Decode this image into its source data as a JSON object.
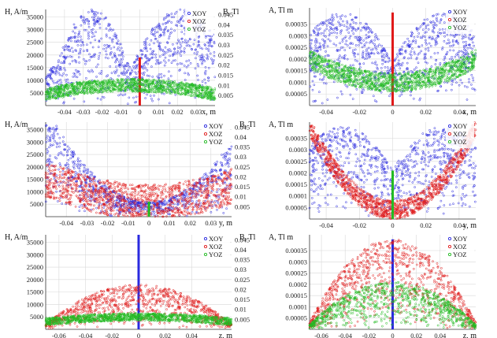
{
  "figure": {
    "legend_labels": [
      "XOY",
      "XOZ",
      "YOZ"
    ],
    "colors": {
      "XOY": "#2a2adf",
      "XOZ": "#e01a1a",
      "YOZ": "#22bb22",
      "grid": "#d8d8d8",
      "axis": "#333333"
    }
  },
  "chart_data": [
    {
      "type": "scatter",
      "panel": "row1-left",
      "ylabel": "H, A/m",
      "y2label": "B, Tl",
      "xlabel": "x, m",
      "x_ticks": [
        "-0.04",
        "-0.03",
        "-0.02",
        "-0.01",
        "0",
        "0.01",
        "0.02",
        "0.03"
      ],
      "y_ticks": [
        "5000",
        "10000",
        "15000",
        "20000",
        "25000",
        "30000",
        "35000"
      ],
      "y2_ticks": [
        "0.005",
        "0.01",
        "0.015",
        "0.02",
        "0.025",
        "0.03",
        "0.035",
        "0.04",
        "0.045"
      ],
      "xlim": [
        -0.05,
        0.04
      ],
      "ylim": [
        0,
        38000
      ],
      "legend": "top-right",
      "grid": true,
      "series": [
        {
          "name": "XOY",
          "shape": "twin-hump",
          "x_center": -0.005,
          "peak_x": [
            -0.025,
            0.022
          ],
          "peak": 38000,
          "center_value": 3000,
          "spread": "uniform-below"
        },
        {
          "name": "XOZ",
          "shape": "spike",
          "x": 0,
          "values": [
            0,
            19000
          ]
        },
        {
          "name": "YOZ",
          "shape": "band",
          "x_center": -0.005,
          "edge_value": 4500,
          "center_value": 8000,
          "thickness": 2500
        }
      ]
    },
    {
      "type": "scatter",
      "panel": "row1-right",
      "ylabel": "A, Tl m",
      "xlabel": "x, m",
      "x_ticks": [
        "-0.04",
        "-0.02",
        "0",
        "0.02",
        "0.04"
      ],
      "y_ticks": [
        "0.00005",
        "0.0001",
        "0.00015",
        "0.0002",
        "0.00025",
        "0.0003",
        "0.00035"
      ],
      "xlim": [
        -0.05,
        0.05
      ],
      "ylim": [
        0,
        0.00042
      ],
      "legend": "top-right",
      "grid": true,
      "series": [
        {
          "name": "XOY",
          "shape": "twin-hump",
          "peak_x": [
            -0.03,
            0.03
          ],
          "peak": 0.0004,
          "center_value": 8e-05,
          "spread": "uniform-below"
        },
        {
          "name": "XOZ",
          "shape": "spike",
          "x": 0,
          "values": [
            0,
            0.0004
          ]
        },
        {
          "name": "YOZ",
          "shape": "valley-band",
          "edge_value": 0.0002,
          "center_value": 0.0001,
          "thickness": 4e-05
        }
      ]
    },
    {
      "type": "scatter",
      "panel": "row2-left",
      "ylabel": "H, A/m",
      "y2label": "B, Tl",
      "xlabel": "y, m",
      "x_ticks": [
        "-0.04",
        "-0.03",
        "-0.02",
        "-0.01",
        "0",
        "0.01",
        "0.02",
        "0.03"
      ],
      "y_ticks": [
        "5000",
        "10000",
        "15000",
        "20000",
        "25000",
        "30000",
        "35000"
      ],
      "y2_ticks": [
        "0.005",
        "0.01",
        "0.015",
        "0.02",
        "0.025",
        "0.03",
        "0.035",
        "0.04",
        "0.045"
      ],
      "xlim": [
        -0.05,
        0.04
      ],
      "ylim": [
        0,
        38000
      ],
      "legend": "top-right",
      "grid": true,
      "series": [
        {
          "name": "XOY",
          "shape": "parabola",
          "edge_value": 37000,
          "center_value": 6000,
          "spread": "uniform-below"
        },
        {
          "name": "XOZ",
          "shape": "valley-band",
          "edge_value": 14000,
          "center_value": 6000,
          "thickness": 7000
        },
        {
          "name": "YOZ",
          "shape": "spike",
          "x": 0,
          "values": [
            0,
            6000
          ]
        }
      ]
    },
    {
      "type": "scatter",
      "panel": "row2-right",
      "ylabel": "A, Tl m",
      "xlabel": "y, m",
      "x_ticks": [
        "-0.04",
        "-0.02",
        "0",
        "0.02",
        "0.04"
      ],
      "y_ticks": [
        "0.00005",
        "0.0001",
        "0.00015",
        "0.0002",
        "0.00025",
        "0.0003",
        "0.00035"
      ],
      "xlim": [
        -0.05,
        0.05
      ],
      "ylim": [
        0,
        0.00042
      ],
      "legend": "top-right",
      "grid": true,
      "series": [
        {
          "name": "XOY",
          "shape": "twin-hump",
          "peak_x": [
            -0.03,
            0.03
          ],
          "peak": 0.0004,
          "center_value": 0.00012,
          "spread": "uniform-below"
        },
        {
          "name": "XOZ",
          "shape": "parabola",
          "edge_value": 0.0004,
          "center_value": 4e-05,
          "thickness": 4e-05
        },
        {
          "name": "YOZ",
          "shape": "spike",
          "x": 0,
          "values": [
            0,
            0.00021
          ]
        }
      ]
    },
    {
      "type": "scatter",
      "panel": "row3-left",
      "ylabel": "H, A/m",
      "y2label": "B, Tl",
      "xlabel": "z, m",
      "x_ticks": [
        "-0.06",
        "-0.04",
        "-0.02",
        "0",
        "0.02",
        "0.04"
      ],
      "y_ticks": [
        "5000",
        "10000",
        "15000",
        "20000",
        "25000",
        "30000",
        "35000"
      ],
      "y2_ticks": [
        "0.005",
        "0.01",
        "0.015",
        "0.02",
        "0.025",
        "0.03",
        "0.035",
        "0.04",
        "0.045"
      ],
      "xlim": [
        -0.07,
        0.07
      ],
      "ylim": [
        0,
        38000
      ],
      "legend": "top-right",
      "grid": true,
      "series": [
        {
          "name": "XOY",
          "shape": "spike",
          "x": 0,
          "values": [
            0,
            38000
          ]
        },
        {
          "name": "XOZ",
          "shape": "dome",
          "edge_value": 2000,
          "peak": 18000,
          "spread": "uniform-below"
        },
        {
          "name": "YOZ",
          "shape": "dome-band",
          "edge_value": 3000,
          "peak": 5000,
          "thickness": 1500
        }
      ]
    },
    {
      "type": "scatter",
      "panel": "row3-right",
      "ylabel": "A, Tl m",
      "xlabel": "z, m",
      "x_ticks": [
        "-0.06",
        "-0.04",
        "-0.02",
        "0",
        "0.02",
        "0.04"
      ],
      "y_ticks": [
        "0.00005",
        "0.0001",
        "0.00015",
        "0.0002",
        "0.00025",
        "0.0003",
        "0.00035"
      ],
      "xlim": [
        -0.07,
        0.07
      ],
      "ylim": [
        0,
        0.00042
      ],
      "legend": "top-right",
      "grid": true,
      "series": [
        {
          "name": "XOY",
          "shape": "spike",
          "x": 0,
          "values": [
            0,
            0.0004
          ]
        },
        {
          "name": "XOZ",
          "shape": "dome",
          "edge_value": 3e-05,
          "peak": 0.0004,
          "spread": "uniform-below"
        },
        {
          "name": "YOZ",
          "shape": "dome",
          "edge_value": 2e-05,
          "peak": 0.00021,
          "spread": "uniform-below"
        }
      ]
    }
  ]
}
